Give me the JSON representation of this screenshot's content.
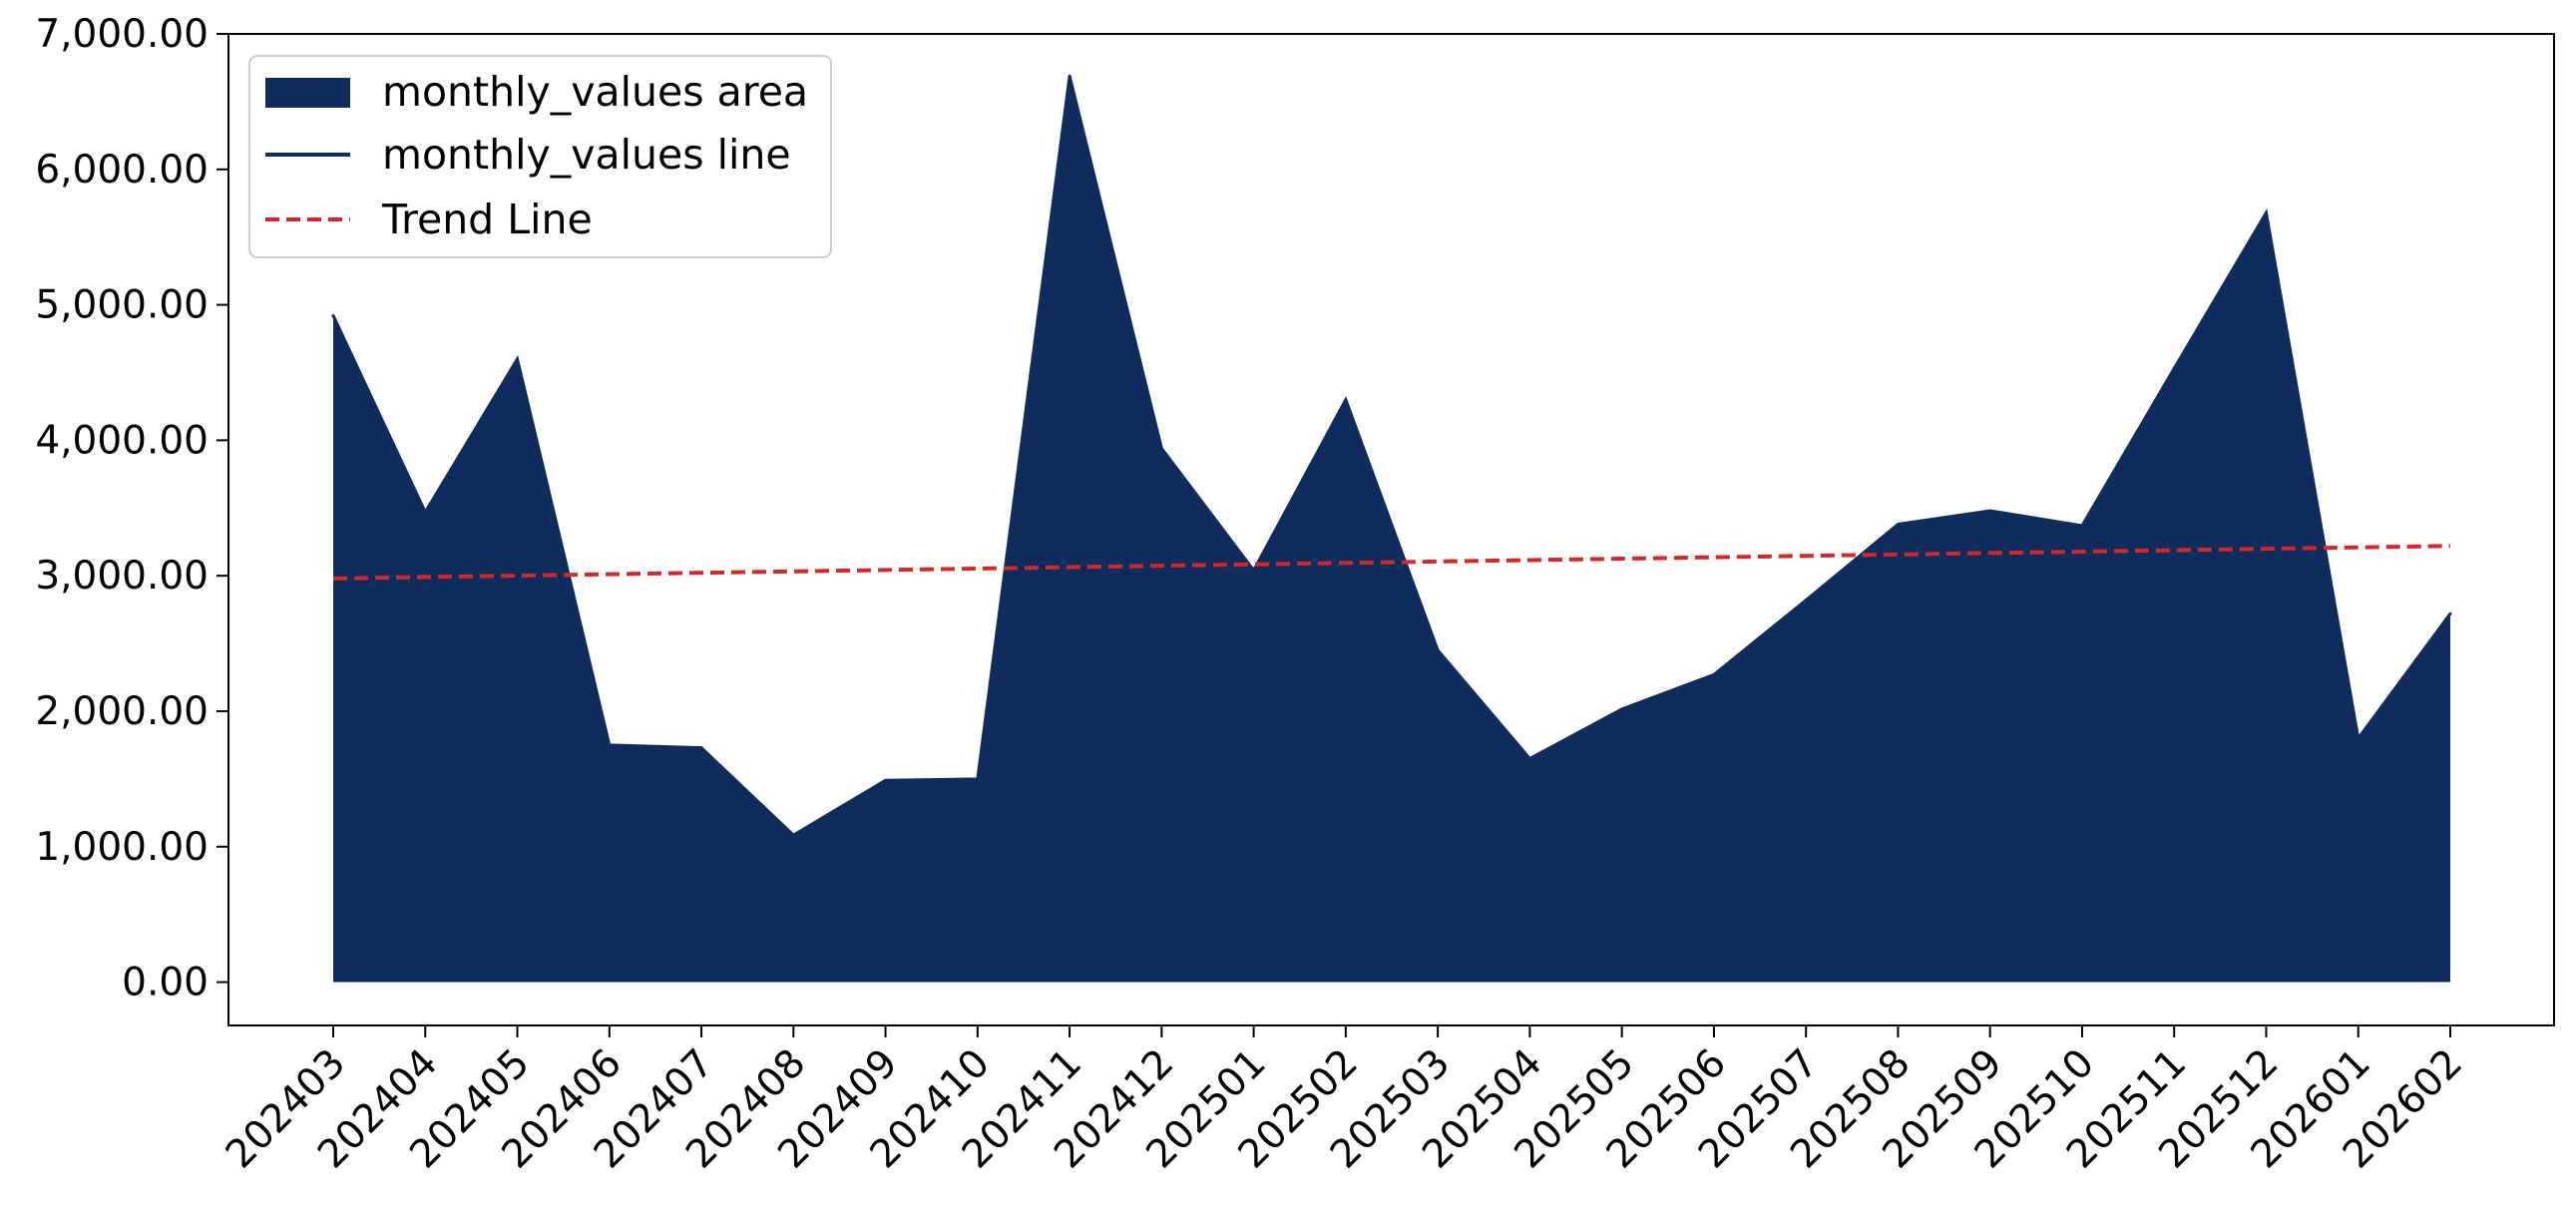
{
  "chart_data": {
    "type": "area",
    "x_categories": [
      "202403",
      "202404",
      "202405",
      "202406",
      "202407",
      "202408",
      "202409",
      "202410",
      "202411",
      "202412",
      "202501",
      "202502",
      "202503",
      "202504",
      "202505",
      "202506",
      "202507",
      "202508",
      "202509",
      "202510",
      "202511",
      "202512",
      "202601",
      "202602"
    ],
    "series": [
      {
        "name": "monthly_values area",
        "kind": "area",
        "color": "#0f2d5c",
        "values": [
          4920,
          3470,
          4600,
          1750,
          1730,
          1085,
          1490,
          1500,
          6690,
          3940,
          3040,
          4300,
          2450,
          1650,
          2015,
          2270,
          2820,
          3380,
          3480,
          3370,
          4530,
          5680,
          1800,
          2720
        ]
      },
      {
        "name": "monthly_values line",
        "kind": "line",
        "color": "#0f2d5c",
        "values": [
          4920,
          3470,
          4600,
          1750,
          1730,
          1085,
          1490,
          1500,
          6690,
          3940,
          3040,
          4300,
          2450,
          1650,
          2015,
          2270,
          2820,
          3380,
          3480,
          3370,
          4530,
          5680,
          1800,
          2720
        ]
      },
      {
        "name": "Trend Line",
        "kind": "dashed-line",
        "color": "#d62728",
        "values": [
          2980,
          2990.4,
          3000.9,
          3011.3,
          3021.7,
          3032.2,
          3042.6,
          3053.0,
          3063.5,
          3073.9,
          3084.3,
          3094.8,
          3105.2,
          3115.7,
          3126.1,
          3136.5,
          3147.0,
          3157.4,
          3167.8,
          3178.3,
          3188.7,
          3199.1,
          3209.6,
          3220
        ]
      }
    ],
    "y_ticks": [
      "0.00",
      "1,000.00",
      "2,000.00",
      "3,000.00",
      "4,000.00",
      "5,000.00",
      "6,000.00",
      "7,000.00"
    ],
    "ylim": [
      -320,
      7000
    ],
    "legend_position": "upper-left",
    "grid": false
  }
}
